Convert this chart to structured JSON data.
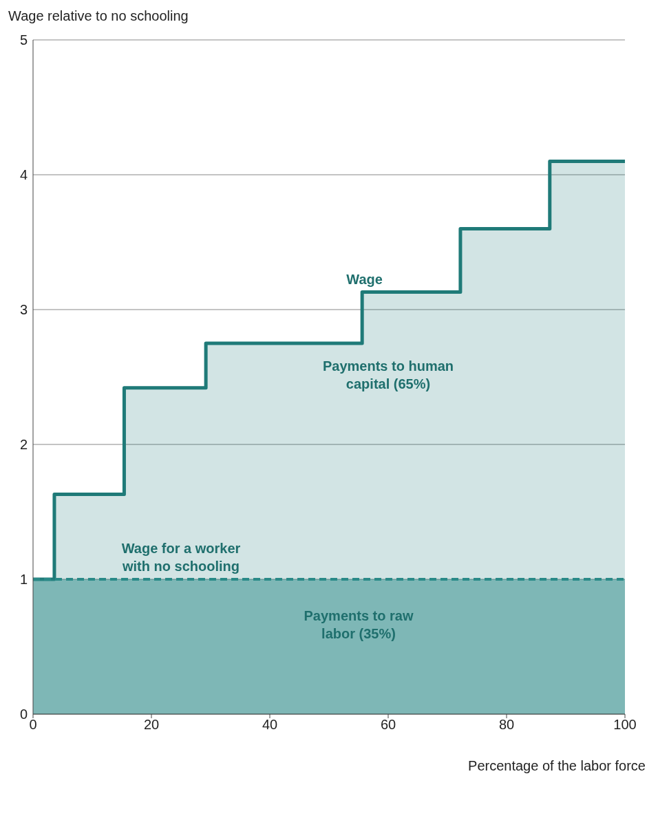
{
  "chart_data": {
    "type": "area",
    "ylabel": "Wage relative to no schooling",
    "xlabel": "Percentage of the labor force",
    "series": [
      {
        "color": "#1f7a78",
        "x": [
          0,
          3.6,
          3.6,
          15.4,
          15.4,
          29.2,
          29.2,
          55.6,
          55.6,
          72.2,
          72.2,
          87.3,
          87.3,
          100
        ],
        "values": [
          1,
          1,
          1.63,
          1.63,
          2.42,
          2.42,
          2.75,
          2.75,
          3.13,
          3.13,
          3.6,
          3.6,
          4.1,
          4.1
        ]
      },
      {
        "color": "#2a8a88",
        "line_style": "dashed",
        "x": [
          0,
          100
        ],
        "values": [
          1,
          1
        ]
      }
    ],
    "xlim": [
      0,
      100
    ],
    "xticks": [
      0,
      20,
      40,
      60,
      80,
      100
    ],
    "ylim": [
      0,
      5
    ],
    "yticks": [
      0,
      1,
      2,
      3,
      4,
      5
    ],
    "grid": "y",
    "annotations": [
      {
        "text": "Wage",
        "x": 56,
        "y": 3.13
      },
      "Payments to human capital (65%)",
      {
        "text": "Wage for a worker with no schooling",
        "x": 25,
        "y": 1
      },
      "Payments to raw labor (35%)"
    ]
  }
}
